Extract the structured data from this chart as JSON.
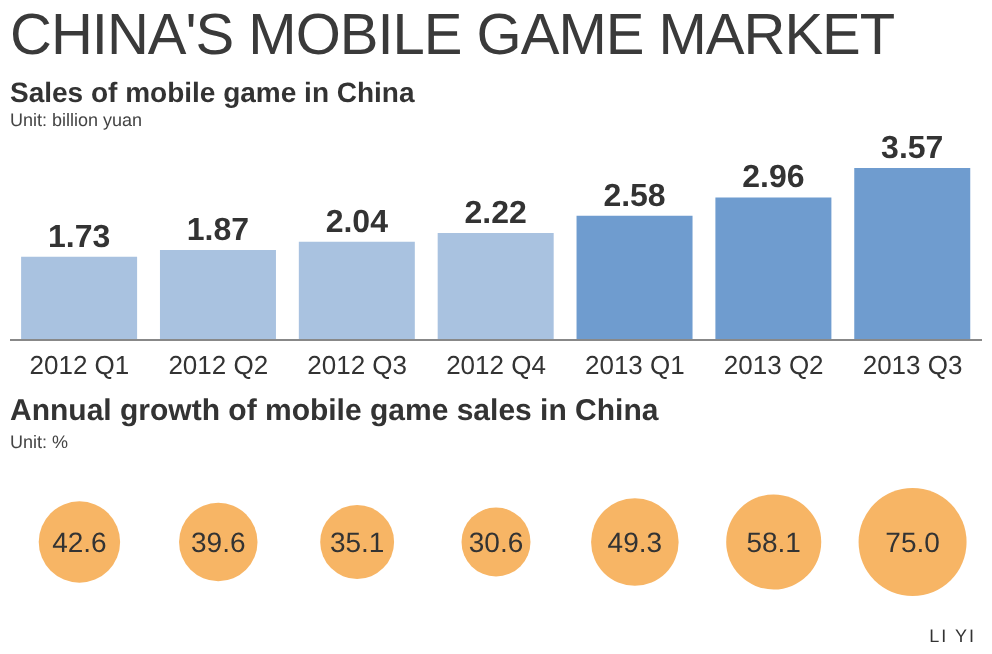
{
  "chart_data": [
    {
      "type": "bar",
      "title": "CHINA'S MOBILE GAME MARKET",
      "subtitle": "Sales of mobile game in China",
      "ylabel": "Unit: billion yuan",
      "categories": [
        "2012 Q1",
        "2012 Q2",
        "2012 Q3",
        "2012 Q4",
        "2013 Q1",
        "2013 Q2",
        "2013 Q3"
      ],
      "values": [
        1.73,
        1.87,
        2.04,
        2.22,
        2.58,
        2.96,
        3.57
      ],
      "colors": [
        "#a9c2e0",
        "#a9c2e0",
        "#a9c2e0",
        "#a9c2e0",
        "#6f9ccf",
        "#6f9ccf",
        "#6f9ccf"
      ],
      "data_labels": true
    },
    {
      "type": "other",
      "title": "Annual growth of mobile game sales in China",
      "ylabel": "Unit: %",
      "categories": [
        null,
        null,
        null,
        null,
        null,
        null,
        null
      ],
      "values": [
        42.6,
        39.6,
        35.1,
        30.6,
        49.3,
        58.1,
        75.0
      ],
      "value_labels": [
        "42.6",
        "39.6",
        "35.1",
        "30.6",
        "49.3",
        "58.1",
        "75.0"
      ],
      "color": "#f7b565",
      "annotations": [
        "LI YI"
      ]
    }
  ]
}
